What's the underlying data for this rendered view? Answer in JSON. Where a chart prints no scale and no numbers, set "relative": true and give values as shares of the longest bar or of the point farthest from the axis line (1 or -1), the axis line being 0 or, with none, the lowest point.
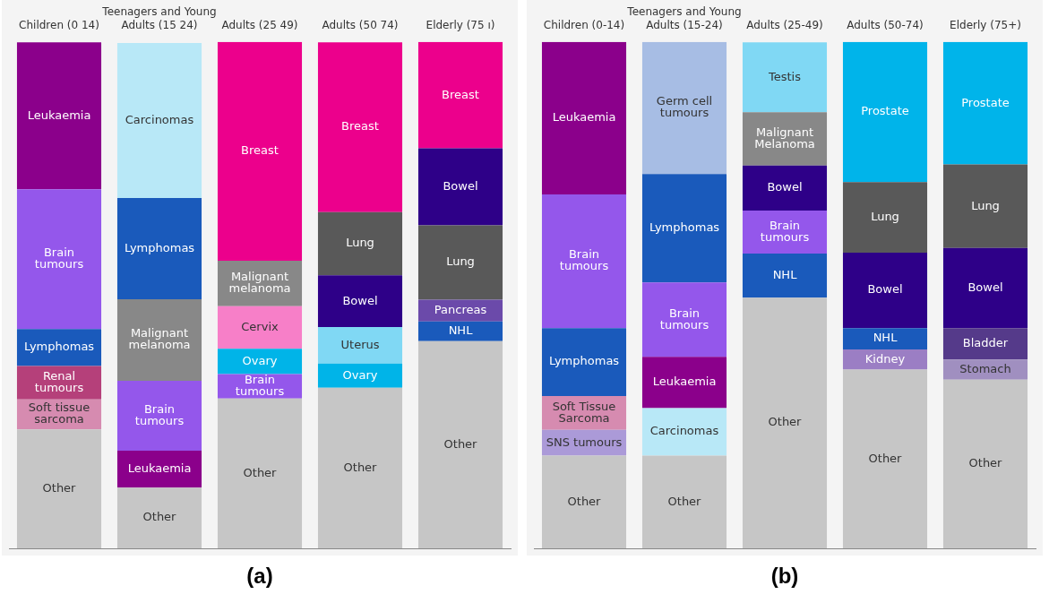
{
  "chart_data": [
    {
      "type": "bar",
      "stacked": true,
      "relative": true,
      "annotations": [
        "(a)"
      ],
      "categories": [
        "Children (0 14)",
        "Teenagers and Young Adults (15 24)",
        "Adults (25 49)",
        "Adults (50 74)",
        "Elderly (75 ı)"
      ],
      "series": [
        {
          "name": "Other",
          "color": "#c6c6c6",
          "values": [
            0.235,
            0.12,
            0.296,
            0.317,
            0.409
          ]
        },
        {
          "name": "Soft tissue sarcoma",
          "color": "#d68bb0",
          "values": [
            0.059,
            null,
            null,
            null,
            null
          ]
        },
        {
          "name": "Renal tumours",
          "color": "#b5407a",
          "values": [
            0.066,
            null,
            null,
            null,
            null
          ]
        },
        {
          "name": "Lymphomas",
          "color": "#1a5abb",
          "values": [
            0.073,
            null,
            null,
            null,
            null
          ]
        },
        {
          "name": "Brain tumours",
          "color": "#9457eb",
          "values": [
            0.276,
            null,
            null,
            null,
            null
          ]
        },
        {
          "name": "Leukaemia",
          "color": "#8b008b",
          "values": [
            0.29,
            null,
            null,
            null,
            null
          ]
        },
        {
          "name": "Leukaemia",
          "color": "#8b008b",
          "values": [
            null,
            0.073,
            null,
            null,
            null
          ]
        },
        {
          "name": "Brain tumours",
          "color": "#9457eb",
          "values": [
            null,
            0.138,
            null,
            null,
            null
          ]
        },
        {
          "name": "Malignant melanoma",
          "color": "#888888",
          "values": [
            null,
            0.161,
            null,
            null,
            null
          ]
        },
        {
          "name": "Lymphomas",
          "color": "#1a5abb",
          "values": [
            null,
            0.2,
            null,
            null,
            null
          ]
        },
        {
          "name": "Carcinomas",
          "color": "#b8e8f7",
          "values": [
            null,
            0.306,
            null,
            null,
            null
          ]
        },
        {
          "name": "Brain tumours",
          "color": "#9457eb",
          "values": [
            null,
            null,
            0.048,
            null,
            null
          ]
        },
        {
          "name": "Ovary",
          "color": "#00b4e8",
          "values": [
            null,
            null,
            0.05,
            null,
            null
          ]
        },
        {
          "name": "Cervix",
          "color": "#f77fc8",
          "values": [
            null,
            null,
            0.084,
            null,
            null
          ]
        },
        {
          "name": "Malignant melanoma",
          "color": "#888888",
          "values": [
            null,
            null,
            0.09,
            null,
            null
          ]
        },
        {
          "name": "Breast",
          "color": "#ec008c",
          "values": [
            null,
            null,
            0.432,
            null,
            null
          ]
        },
        {
          "name": "Ovary",
          "color": "#00b4e8",
          "values": [
            null,
            null,
            null,
            0.048,
            null
          ]
        },
        {
          "name": "Uterus",
          "color": "#80d8f4",
          "values": [
            null,
            null,
            null,
            0.072,
            null
          ]
        },
        {
          "name": "Bowel",
          "color": "#2e0088",
          "values": [
            null,
            null,
            null,
            0.102,
            null
          ]
        },
        {
          "name": "Lung",
          "color": "#595959",
          "values": [
            null,
            null,
            null,
            0.125,
            null
          ]
        },
        {
          "name": "Breast",
          "color": "#ec008c",
          "values": [
            null,
            null,
            null,
            0.335,
            null
          ]
        },
        {
          "name": "NHL",
          "color": "#1a5abb",
          "values": [
            null,
            null,
            null,
            null,
            0.039
          ]
        },
        {
          "name": "Pancreas",
          "color": "#6b4aaa",
          "values": [
            null,
            null,
            null,
            null,
            0.043
          ]
        },
        {
          "name": "Lung",
          "color": "#595959",
          "values": [
            null,
            null,
            null,
            null,
            0.147
          ]
        },
        {
          "name": "Bowel",
          "color": "#2e0088",
          "values": [
            null,
            null,
            null,
            null,
            0.152
          ]
        },
        {
          "name": "Breast",
          "color": "#ec008c",
          "values": [
            null,
            null,
            null,
            null,
            0.21
          ]
        }
      ]
    },
    {
      "type": "bar",
      "stacked": true,
      "relative": true,
      "annotations": [
        "(b)"
      ],
      "categories": [
        "Children (0-14)",
        "Teenagers and Young Adults (15-24)",
        "Adults (25-49)",
        "Adults (50-74)",
        "Elderly (75+)"
      ],
      "series": [
        {
          "name": "Other",
          "color": "#c6c6c6",
          "values": [
            0.183,
            0.183,
            0.495,
            0.353,
            0.333
          ]
        },
        {
          "name": "SNS tumours",
          "color": "#ab9ad8",
          "values": [
            0.051,
            null,
            null,
            null,
            null
          ]
        },
        {
          "name": "Soft Tissue Sarcoma",
          "color": "#d68bb0",
          "values": [
            0.067,
            null,
            null,
            null,
            null
          ]
        },
        {
          "name": "Lymphomas",
          "color": "#1a5abb",
          "values": [
            0.134,
            null,
            null,
            null,
            null
          ]
        },
        {
          "name": "Brain tumours",
          "color": "#9457eb",
          "values": [
            0.264,
            null,
            null,
            null,
            null
          ]
        },
        {
          "name": "Leukaemia",
          "color": "#8b008b",
          "values": [
            0.301,
            null,
            null,
            null,
            null
          ]
        },
        {
          "name": "Carcinomas",
          "color": "#b8e8f7",
          "values": [
            null,
            0.094,
            null,
            null,
            null
          ]
        },
        {
          "name": "Leukaemia",
          "color": "#8b008b",
          "values": [
            null,
            0.101,
            null,
            null,
            null
          ]
        },
        {
          "name": "Brain tumours",
          "color": "#9457eb",
          "values": [
            null,
            0.147,
            null,
            null,
            null
          ]
        },
        {
          "name": "Lymphomas",
          "color": "#1a5abb",
          "values": [
            null,
            0.214,
            null,
            null,
            null
          ]
        },
        {
          "name": "Germ cell tumours",
          "color": "#a7bde4",
          "values": [
            null,
            0.261,
            null,
            null,
            null
          ]
        },
        {
          "name": "NHL",
          "color": "#1a5abb",
          "values": [
            null,
            null,
            0.087,
            null,
            null
          ]
        },
        {
          "name": "Brain tumours",
          "color": "#9457eb",
          "values": [
            null,
            null,
            0.085,
            null,
            null
          ]
        },
        {
          "name": "Bowel",
          "color": "#2e0088",
          "values": [
            null,
            null,
            0.089,
            null,
            null
          ]
        },
        {
          "name": "Malignant Melanoma",
          "color": "#888888",
          "values": [
            null,
            null,
            0.105,
            null,
            null
          ]
        },
        {
          "name": "Testis",
          "color": "#80d8f4",
          "values": [
            null,
            null,
            0.138,
            null,
            null
          ]
        },
        {
          "name": "Kidney",
          "color": "#9b7ec4",
          "values": [
            null,
            null,
            null,
            0.04,
            null
          ]
        },
        {
          "name": "NHL",
          "color": "#1a5abb",
          "values": [
            null,
            null,
            null,
            0.042,
            null
          ]
        },
        {
          "name": "Bowel",
          "color": "#2e0088",
          "values": [
            null,
            null,
            null,
            0.149,
            null
          ]
        },
        {
          "name": "Lung",
          "color": "#595959",
          "values": [
            null,
            null,
            null,
            0.139,
            null
          ]
        },
        {
          "name": "Prostate",
          "color": "#00b4ea",
          "values": [
            null,
            null,
            null,
            0.277,
            null
          ]
        },
        {
          "name": "Stomach",
          "color": "#a08fc0",
          "values": [
            null,
            null,
            null,
            null,
            0.04
          ]
        },
        {
          "name": "Bladder",
          "color": "#553a8a",
          "values": [
            null,
            null,
            null,
            null,
            0.062
          ]
        },
        {
          "name": "Bowel",
          "color": "#2e0088",
          "values": [
            null,
            null,
            null,
            null,
            0.158
          ]
        },
        {
          "name": "Lung",
          "color": "#595959",
          "values": [
            null,
            null,
            null,
            null,
            0.165
          ]
        },
        {
          "name": "Prostate",
          "color": "#00b4ea",
          "values": [
            null,
            null,
            null,
            null,
            0.242
          ]
        }
      ]
    }
  ]
}
